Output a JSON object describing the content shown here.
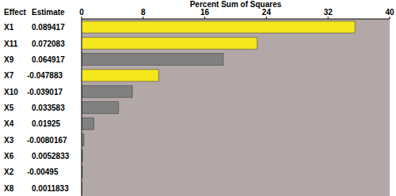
{
  "chart_data": {
    "type": "bar",
    "orientation": "horizontal",
    "title": "Percent Sum of Squares",
    "column_headers": [
      "Effect",
      "Estimate"
    ],
    "categories": [
      "X1",
      "X11",
      "X9",
      "X7",
      "X10",
      "X5",
      "X4",
      "X3",
      "X6",
      "X2",
      "X8"
    ],
    "values": [
      35.5,
      22.8,
      18.4,
      10.0,
      6.6,
      4.8,
      1.6,
      0.3,
      0.12,
      0.1,
      0.05
    ],
    "effect_estimate": [
      0.089417,
      0.072083,
      0.064917,
      -0.047883,
      -0.039017,
      0.033583,
      0.01925,
      -0.0080167,
      0.0052833,
      -0.00495,
      0.0011833
    ],
    "colors": [
      "#f5e61e",
      "#f5e61e",
      "#808080",
      "#f5e61e",
      "#808080",
      "#808080",
      "#808080",
      "#808080",
      "#808080",
      "#808080",
      "#808080"
    ],
    "xlim": [
      0,
      40
    ],
    "xticks": [
      0,
      8,
      16,
      24,
      32,
      40
    ],
    "grid": false
  }
}
